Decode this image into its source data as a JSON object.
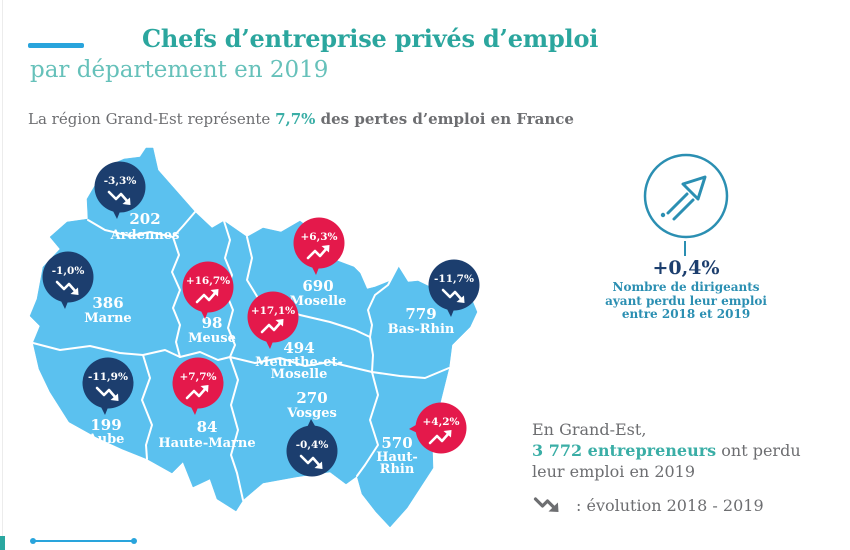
{
  "title": {
    "line1": "Chefs d’entreprise privés d’emploi",
    "line2": "par département en 2019"
  },
  "subtitle": {
    "prefix": "La région Grand-Est représente ",
    "highlight": "7,7%",
    "suffix": " des pertes d’emploi en France"
  },
  "map": {
    "departments": [
      {
        "id": "ardennes",
        "name": "Ardennes",
        "name_lines": [
          "Ardennes"
        ],
        "value": "202",
        "pct": "-3,3%",
        "trend": "down"
      },
      {
        "id": "marne",
        "name": "Marne",
        "name_lines": [
          "Marne"
        ],
        "value": "386",
        "pct": "-1,0%",
        "trend": "down"
      },
      {
        "id": "meuse",
        "name": "Meuse",
        "name_lines": [
          "Meuse"
        ],
        "value": "98",
        "pct": "+16,7%",
        "trend": "up"
      },
      {
        "id": "moselle",
        "name": "Moselle",
        "name_lines": [
          "Moselle"
        ],
        "value": "690",
        "pct": "+6,3%",
        "trend": "up"
      },
      {
        "id": "meurthe-et-moselle",
        "name": "Meurthe-et-Moselle",
        "name_lines": [
          "Meurthe-et-",
          "Moselle"
        ],
        "value": "494",
        "pct": "+17,1%",
        "trend": "up"
      },
      {
        "id": "bas-rhin",
        "name": "Bas-Rhin",
        "name_lines": [
          "Bas-Rhin"
        ],
        "value": "779",
        "pct": "-11,7%",
        "trend": "down"
      },
      {
        "id": "aube",
        "name": "Aube",
        "name_lines": [
          "Aube"
        ],
        "value": "199",
        "pct": "-11,9%",
        "trend": "down"
      },
      {
        "id": "haute-marne",
        "name": "Haute-Marne",
        "name_lines": [
          "Haute-Marne"
        ],
        "value": "84",
        "pct": "+7,7%",
        "trend": "up"
      },
      {
        "id": "vosges",
        "name": "Vosges",
        "name_lines": [
          "Vosges"
        ],
        "value": "270",
        "pct": "-0,4%",
        "trend": "down"
      },
      {
        "id": "haut-rhin",
        "name": "Haut-Rhin",
        "name_lines": [
          "Haut-",
          "Rhin"
        ],
        "value": "570",
        "pct": "+4,2%",
        "trend": "up"
      }
    ]
  },
  "stat_panel": {
    "value": "+0,4%",
    "caption_lines": [
      "Nombre de dirigeants",
      "ayant perdu leur emploi",
      "entre 2018 et 2019"
    ]
  },
  "summary": {
    "line1": "En Grand-Est,",
    "highlight": "3 772 entrepreneurs",
    "after_highlight": " ont perdu",
    "line2": "leur emploi en 2019"
  },
  "legend": {
    "icon": "trend-down-zigzag-icon",
    "label": ": évolution 2018 - 2019"
  },
  "colors": {
    "title_teal": "#2ba69e",
    "subtitle_teal": "#66c1ba",
    "accent_teal": "#3aaea6",
    "dash_blue": "#29a4dc",
    "map_blue": "#5bc1ef",
    "pin_increase_red": "#e4194b",
    "pin_decrease_navy": "#1c3e6e",
    "panel_blue": "#2b8fb2",
    "text_gray": "#6d6e71"
  },
  "chart_data": {
    "type": "table",
    "title": "Chefs d’entreprise privés d’emploi par département en 2019",
    "region": "Grand-Est",
    "columns": [
      "département",
      "dirigeants ayant perdu leur emploi en 2019",
      "évolution 2018 - 2019"
    ],
    "rows": [
      [
        "Ardennes",
        202,
        "-3,3%"
      ],
      [
        "Marne",
        386,
        "-1,0%"
      ],
      [
        "Meuse",
        98,
        "+16,7%"
      ],
      [
        "Moselle",
        690,
        "+6,3%"
      ],
      [
        "Meurthe-et-Moselle",
        494,
        "+17,1%"
      ],
      [
        "Bas-Rhin",
        779,
        "-11,7%"
      ],
      [
        "Aube",
        199,
        "-11,9%"
      ],
      [
        "Haute-Marne",
        84,
        "+7,7%"
      ],
      [
        "Vosges",
        270,
        "-0,4%"
      ],
      [
        "Haut-Rhin",
        570,
        "+4,2%"
      ]
    ],
    "totals": {
      "grand_est_entrepreneurs": 3772,
      "grand_est_evolution_2018_2019": "+0,4%",
      "part_des_pertes_emploi_france": "7,7%"
    }
  }
}
